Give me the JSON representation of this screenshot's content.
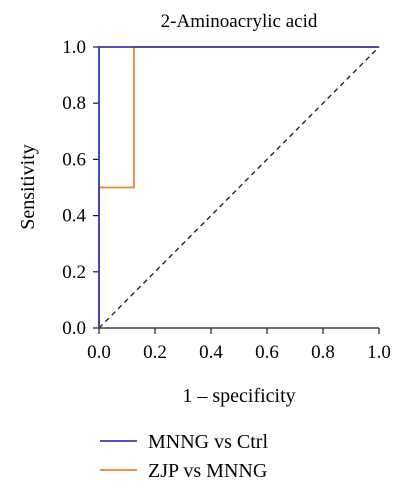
{
  "chart_data": {
    "type": "line",
    "title": "2-Aminoacrylic acid",
    "xlabel": "1 – specificity",
    "ylabel": "Sensitivity",
    "xlim": [
      0,
      1
    ],
    "ylim": [
      0,
      1
    ],
    "xticks": [
      "0.0",
      "0.2",
      "0.4",
      "0.6",
      "0.8",
      "1.0"
    ],
    "yticks": [
      "0.0",
      "0.2",
      "0.4",
      "0.6",
      "0.8",
      "1.0"
    ],
    "grid": false,
    "legend_position": "bottom",
    "series": [
      {
        "name": "MNNG vs Ctrl",
        "color": "#3b3bb0",
        "x": [
          0,
          0,
          1
        ],
        "y": [
          0,
          1,
          1
        ]
      },
      {
        "name": "ZJP vs MNNG",
        "color": "#e08a2c",
        "x": [
          0,
          0,
          0.125,
          0.125,
          1
        ],
        "y": [
          0,
          0.5,
          0.5,
          1,
          1
        ]
      }
    ],
    "reference_line": {
      "x": [
        0,
        1
      ],
      "y": [
        0,
        1
      ],
      "color": "#1a1a1a",
      "style": "dashed"
    }
  }
}
